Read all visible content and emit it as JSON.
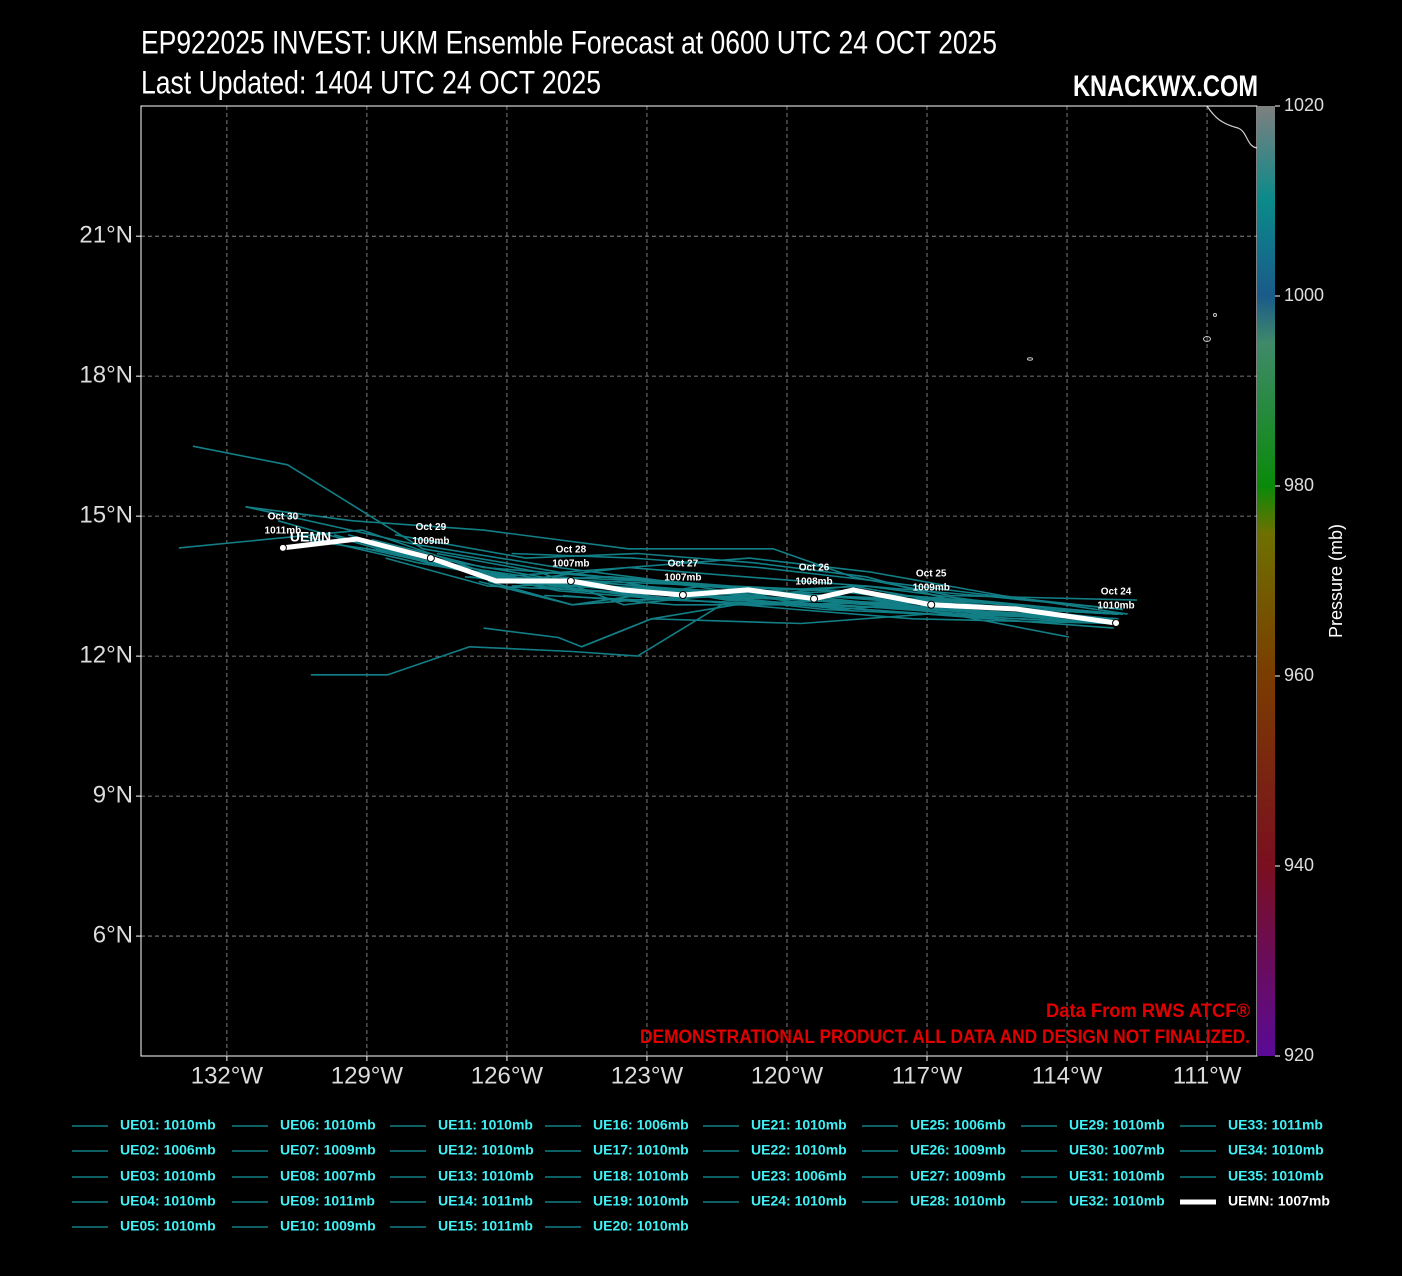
{
  "chart_data": {
    "type": "line",
    "title": "EP922025 INVEST: UKM Ensemble Forecast at 0600 UTC 24 OCT 2025",
    "subtitle": "Last Updated: 1404 UTC 24 OCT 2025",
    "watermark": "KNACKWX.COM",
    "source_note": "Data From RWS ATCF®",
    "disclaimer": "DEMONSTRATIONAL PRODUCT. ALL DATA AND DESIGN NOT FINALIZED.",
    "track_label": "UEMN",
    "xlim": [
      -133.84,
      -109.93
    ],
    "ylim": [
      3.43,
      23.79
    ],
    "xticks": [
      {
        "value": -132,
        "label": "132°W"
      },
      {
        "value": -129,
        "label": "129°W"
      },
      {
        "value": -126,
        "label": "126°W"
      },
      {
        "value": -123,
        "label": "123°W"
      },
      {
        "value": -120,
        "label": "120°W"
      },
      {
        "value": -117,
        "label": "117°W"
      },
      {
        "value": -114,
        "label": "114°W"
      },
      {
        "value": -111,
        "label": "111°W"
      }
    ],
    "yticks": [
      {
        "value": 6,
        "label": "6°N"
      },
      {
        "value": 9,
        "label": "9°N"
      },
      {
        "value": 12,
        "label": "12°N"
      },
      {
        "value": 15,
        "label": "15°N"
      },
      {
        "value": 18,
        "label": "18°N"
      },
      {
        "value": 21,
        "label": "21°N"
      }
    ],
    "grid": true,
    "colorbar": {
      "label": "Pressure (mb)",
      "lim": [
        920,
        1020
      ],
      "ticks": [
        920,
        940,
        960,
        980,
        1000,
        1020
      ]
    },
    "legend_text_color": "#3ff0f5",
    "series": [
      {
        "name": "UE01: 1010mb",
        "color": "#127f86",
        "x": [
          -112.9,
          -116.9,
          -119.5,
          -122.0,
          -124.9,
          -127.8,
          -130.7,
          -132.73
        ],
        "values": [
          12.8,
          13.0,
          13.1,
          13.5,
          13.8,
          14.3,
          16.1,
          16.5
        ]
      },
      {
        "name": "UE02: 1006mb",
        "color": "#127f86",
        "x": [
          -112.5,
          -116.5,
          -118.6,
          -120.3,
          -123.4,
          -126.5,
          -129.3,
          -131.6
        ],
        "values": [
          13.2,
          13.3,
          13.7,
          14.3,
          14.3,
          14.7,
          14.9,
          15.2
        ]
      },
      {
        "name": "UE03: 1010mb",
        "color": "#127f86",
        "x": [
          -113.0,
          -117.0,
          -119.7,
          -122.9,
          -124.4,
          -124.9,
          -126.5
        ],
        "values": [
          12.6,
          12.9,
          12.7,
          12.8,
          12.2,
          12.4,
          12.6
        ]
      },
      {
        "name": "UE04: 1010mb",
        "color": "#127f86",
        "x": [
          -113.96,
          -116.5,
          -119.0,
          -121.4,
          -123.2,
          -124.6,
          -126.8,
          -128.55,
          -130.2
        ],
        "values": [
          12.41,
          12.9,
          13.2,
          13.1,
          12.0,
          12.1,
          12.2,
          11.6,
          11.6
        ]
      },
      {
        "name": "UE05: 1010mb",
        "color": "#127f86",
        "x": [
          -112.9,
          -116.7,
          -119.3,
          -121.8,
          -124.6,
          -126.4
        ],
        "values": [
          12.9,
          13.1,
          13.3,
          13.5,
          13.1,
          13.6
        ]
      },
      {
        "name": "UE06: 1010mb",
        "color": "#127f86",
        "x": [
          -112.9,
          -116.0,
          -118.3,
          -120.5,
          -122.9,
          -125.0
        ],
        "values": [
          12.9,
          13.2,
          13.5,
          13.4,
          13.6,
          13.7
        ]
      },
      {
        "name": "UE07: 1009mb",
        "color": "#127f86",
        "x": [
          -113.2,
          -117.1,
          -119.6,
          -121.9,
          -124.3,
          -126.3,
          -129.0
        ],
        "values": [
          12.8,
          13.0,
          13.3,
          13.4,
          13.6,
          13.7,
          14.3
        ]
      },
      {
        "name": "UE08: 1007mb",
        "color": "#127f86",
        "x": [
          -113.1,
          -116.8,
          -119.9,
          -122.5,
          -125.0,
          -127.9,
          -130.5
        ],
        "values": [
          12.8,
          13.2,
          13.1,
          13.2,
          13.5,
          14.0,
          14.6
        ]
      },
      {
        "name": "UE09: 1011mb",
        "color": "#127f86",
        "x": [
          -112.8,
          -116.5,
          -118.8,
          -121.6,
          -123.5,
          -125.3,
          -127.5
        ],
        "values": [
          12.9,
          13.2,
          13.0,
          13.3,
          13.1,
          13.8,
          14.2
        ]
      },
      {
        "name": "UE10: 1009mb",
        "color": "#127f86",
        "x": [
          -113.0,
          -117.3,
          -119.8,
          -122.1,
          -124.0,
          -126.4,
          -128.6
        ],
        "values": [
          12.7,
          12.8,
          13.0,
          13.2,
          13.4,
          13.5,
          14.1
        ]
      },
      {
        "name": "UE11: 1010mb",
        "color": "#127f86",
        "x": [
          -112.7,
          -115.4,
          -118.2,
          -120.8,
          -123.4,
          -126.0
        ],
        "values": [
          12.9,
          13.3,
          13.8,
          14.1,
          13.9,
          13.6
        ]
      },
      {
        "name": "UE12: 1010mb",
        "color": "#127f86",
        "x": [
          -113.2,
          -116.2,
          -118.9,
          -121.1,
          -122.9,
          -124.4
        ],
        "values": [
          12.7,
          13.0,
          13.2,
          13.1,
          12.8,
          12.2
        ]
      },
      {
        "name": "UE13: 1010mb",
        "color": "#127f86",
        "x": [
          -113.0,
          -117.0,
          -119.2,
          -121.9,
          -124.6,
          -126.6
        ],
        "values": [
          12.8,
          12.9,
          13.0,
          13.3,
          13.1,
          13.6
        ]
      },
      {
        "name": "UE14: 1011mb",
        "color": "#127f86",
        "x": [
          -112.9,
          -116.6,
          -119.4,
          -121.6,
          -124.2,
          -126.9,
          -129.4
        ],
        "values": [
          12.9,
          13.2,
          13.3,
          13.4,
          13.5,
          13.9,
          14.6
        ]
      },
      {
        "name": "UE15: 1011mb",
        "color": "#127f86",
        "x": [
          -113.0,
          -116.4,
          -119.0,
          -121.8,
          -124.9,
          -128.0,
          -131.6
        ],
        "values": [
          12.8,
          13.1,
          13.4,
          13.5,
          13.9,
          14.4,
          15.2
        ]
      },
      {
        "name": "UE16: 1006mb",
        "color": "#127f86",
        "x": [
          -112.8,
          -115.9,
          -118.3,
          -120.9,
          -123.4,
          -126.2,
          -129.1,
          -133.03
        ],
        "values": [
          13.0,
          13.3,
          13.5,
          13.7,
          13.9,
          13.7,
          14.7,
          14.32
        ]
      },
      {
        "name": "UE17: 1010mb",
        "color": "#127f86",
        "x": [
          -113.1,
          -116.9,
          -119.6,
          -122.3,
          -124.7
        ],
        "values": [
          12.7,
          13.0,
          13.2,
          13.3,
          13.6
        ]
      },
      {
        "name": "UE18: 1010mb",
        "color": "#127f86",
        "x": [
          -112.9,
          -116.3,
          -118.6,
          -120.6,
          -123.0
        ],
        "values": [
          12.9,
          13.1,
          13.5,
          13.3,
          13.4
        ]
      },
      {
        "name": "UE19: 1010mb",
        "color": "#127f86",
        "x": [
          -113.1,
          -116.1,
          -118.9,
          -121.3,
          -123.6,
          -125.9
        ],
        "values": [
          12.8,
          12.9,
          13.1,
          13.2,
          13.6,
          13.5
        ]
      },
      {
        "name": "UE20: 1010mb",
        "color": "#127f86",
        "x": [
          -112.9,
          -116.7,
          -119.1,
          -121.7,
          -124.3,
          -126.7,
          -128.8
        ],
        "values": [
          12.8,
          13.0,
          13.2,
          13.3,
          13.4,
          13.8,
          14.3
        ]
      },
      {
        "name": "UE21: 1010mb",
        "color": "#127f86",
        "x": [
          -113.0,
          -116.8,
          -119.5,
          -122.2,
          -124.9,
          -127.3
        ],
        "values": [
          12.8,
          13.0,
          13.2,
          13.4,
          13.5,
          14.0
        ]
      },
      {
        "name": "UE22: 1010mb",
        "color": "#127f86",
        "x": [
          -112.8,
          -116.2,
          -118.8,
          -121.2,
          -123.8,
          -126.1
        ],
        "values": [
          12.9,
          13.2,
          13.4,
          13.5,
          13.7,
          13.6
        ]
      },
      {
        "name": "UE23: 1006mb",
        "color": "#127f86",
        "x": [
          -113.0,
          -116.1,
          -118.3,
          -120.7,
          -123.2,
          -125.6,
          -128.4
        ],
        "values": [
          12.8,
          13.1,
          13.7,
          14.0,
          14.2,
          14.1,
          14.6
        ]
      },
      {
        "name": "UE24: 1010mb",
        "color": "#127f86",
        "x": [
          -113.1,
          -116.9,
          -119.8,
          -122.4,
          -124.8
        ],
        "values": [
          12.7,
          12.9,
          13.1,
          13.1,
          13.3
        ]
      },
      {
        "name": "UE25: 1006mb",
        "color": "#127f86",
        "x": [
          -112.8,
          -115.6,
          -118.0,
          -120.6,
          -123.3,
          -125.9
        ],
        "values": [
          13.0,
          13.3,
          13.6,
          13.9,
          14.1,
          14.2
        ]
      },
      {
        "name": "UE26: 1009mb",
        "color": "#127f86",
        "x": [
          -112.9,
          -116.6,
          -119.2,
          -121.6,
          -124.0,
          -126.5,
          -128.9
        ],
        "values": [
          12.9,
          13.1,
          13.3,
          13.5,
          13.7,
          13.9,
          14.5
        ]
      },
      {
        "name": "UE27: 1009mb",
        "color": "#127f86",
        "x": [
          -113.0,
          -116.9,
          -119.5,
          -122.0,
          -124.6,
          -127.2,
          -129.7
        ],
        "values": [
          12.8,
          13.0,
          13.1,
          13.3,
          13.5,
          13.9,
          14.6
        ]
      },
      {
        "name": "UE28: 1010mb",
        "color": "#127f86",
        "x": [
          -113.1,
          -116.7,
          -119.3,
          -121.9,
          -124.5,
          -126.8
        ],
        "values": [
          12.8,
          13.0,
          13.2,
          13.3,
          13.4,
          13.7
        ]
      },
      {
        "name": "UE29: 1010mb",
        "color": "#127f86",
        "x": [
          -112.9,
          -116.5,
          -119.1,
          -121.5,
          -123.9,
          -126.4
        ],
        "values": [
          12.9,
          13.1,
          13.3,
          13.4,
          13.5,
          13.6
        ]
      },
      {
        "name": "UE30: 1007mb",
        "color": "#127f86",
        "x": [
          -113.0,
          -116.6,
          -119.6,
          -122.2,
          -124.7,
          -127.6,
          -130.4
        ],
        "values": [
          12.8,
          13.1,
          13.2,
          13.3,
          13.6,
          14.1,
          14.5
        ]
      },
      {
        "name": "UE31: 1010mb",
        "color": "#127f86",
        "x": [
          -113.0,
          -116.3,
          -118.7,
          -121.0,
          -123.1,
          -125.2
        ],
        "values": [
          12.8,
          13.0,
          13.4,
          13.3,
          13.2,
          13.3
        ]
      },
      {
        "name": "UE32: 1010mb",
        "color": "#127f86",
        "x": [
          -112.9,
          -116.8,
          -119.4,
          -121.8,
          -124.4,
          -126.3
        ],
        "values": [
          12.9,
          13.1,
          13.3,
          13.4,
          13.6,
          13.6
        ]
      },
      {
        "name": "UE33: 1011mb",
        "color": "#127f86",
        "x": [
          -113.1,
          -117.0,
          -119.7,
          -122.4,
          -124.9,
          -127.7,
          -130.9
        ],
        "values": [
          12.7,
          12.9,
          13.1,
          13.2,
          13.4,
          14.0,
          14.9
        ]
      },
      {
        "name": "UE34: 1010mb",
        "color": "#127f86",
        "x": [
          -112.8,
          -116.4,
          -118.9,
          -121.4,
          -123.9,
          -126.2
        ],
        "values": [
          12.9,
          13.2,
          13.4,
          13.5,
          13.6,
          13.7
        ]
      },
      {
        "name": "UE35: 1010mb",
        "color": "#127f86",
        "x": [
          -113.0,
          -116.6,
          -119.3,
          -121.9,
          -124.5,
          -126.9
        ],
        "values": [
          12.8,
          13.0,
          13.2,
          13.3,
          13.5,
          13.7
        ]
      },
      {
        "name": "UEMN: 1007mb",
        "color": "#ffffff",
        "x": [
          -112.95,
          -115.09,
          -116.91,
          -118.58,
          -119.42,
          -120.83,
          -122.23,
          -123.53,
          -124.63,
          -126.23,
          -127.63,
          -129.21,
          -130.8
        ],
        "values": [
          12.71,
          13.01,
          13.1,
          13.42,
          13.23,
          13.42,
          13.31,
          13.42,
          13.61,
          13.61,
          14.1,
          14.51,
          14.32
        ],
        "date_labels": [
          "Oct 24",
          null,
          "Oct 25",
          null,
          "Oct 26",
          null,
          "Oct 27",
          null,
          "Oct 28",
          null,
          "Oct 29",
          null,
          "Oct 30"
        ],
        "pressure_labels": [
          "1010mb",
          null,
          "1009mb",
          null,
          "1008mb",
          null,
          "1007mb",
          null,
          "1007mb",
          null,
          "1009mb",
          null,
          "1011mb"
        ]
      }
    ]
  }
}
